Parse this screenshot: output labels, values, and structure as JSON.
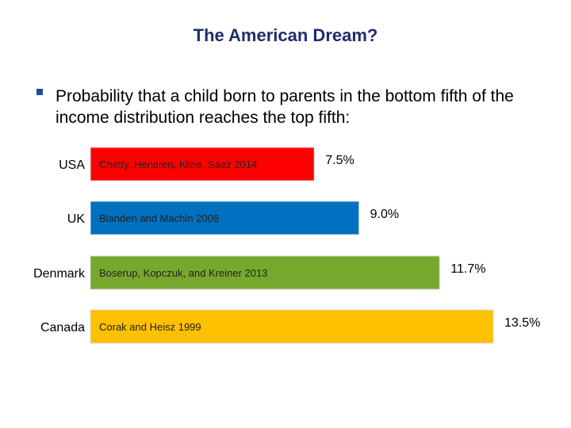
{
  "title": "The American Dream?",
  "bullet": {
    "icon": "square-bullet-icon",
    "text": "Probability that a child born to parents in the bottom fifth of the income distribution reaches the top fifth:"
  },
  "chart_data": {
    "type": "bar",
    "orientation": "horizontal",
    "categories": [
      "USA",
      "UK",
      "Denmark",
      "Canada"
    ],
    "values": [
      7.5,
      9.0,
      11.7,
      13.5
    ],
    "value_labels": [
      "7.5%",
      "9.0%",
      "11.7%",
      "13.5%"
    ],
    "sources": [
      "Chetty, Hendren, Kline, Saez 2014",
      "Blanden and Machin 2008",
      "Boserup, Kopczuk, and Kreiner 2013",
      "Corak and Heisz 1999"
    ],
    "colors": [
      "#ff0000",
      "#0070c0",
      "#77a82e",
      "#ffc000"
    ],
    "xlim": [
      0,
      13.5
    ],
    "grid": false,
    "legend": "none"
  }
}
